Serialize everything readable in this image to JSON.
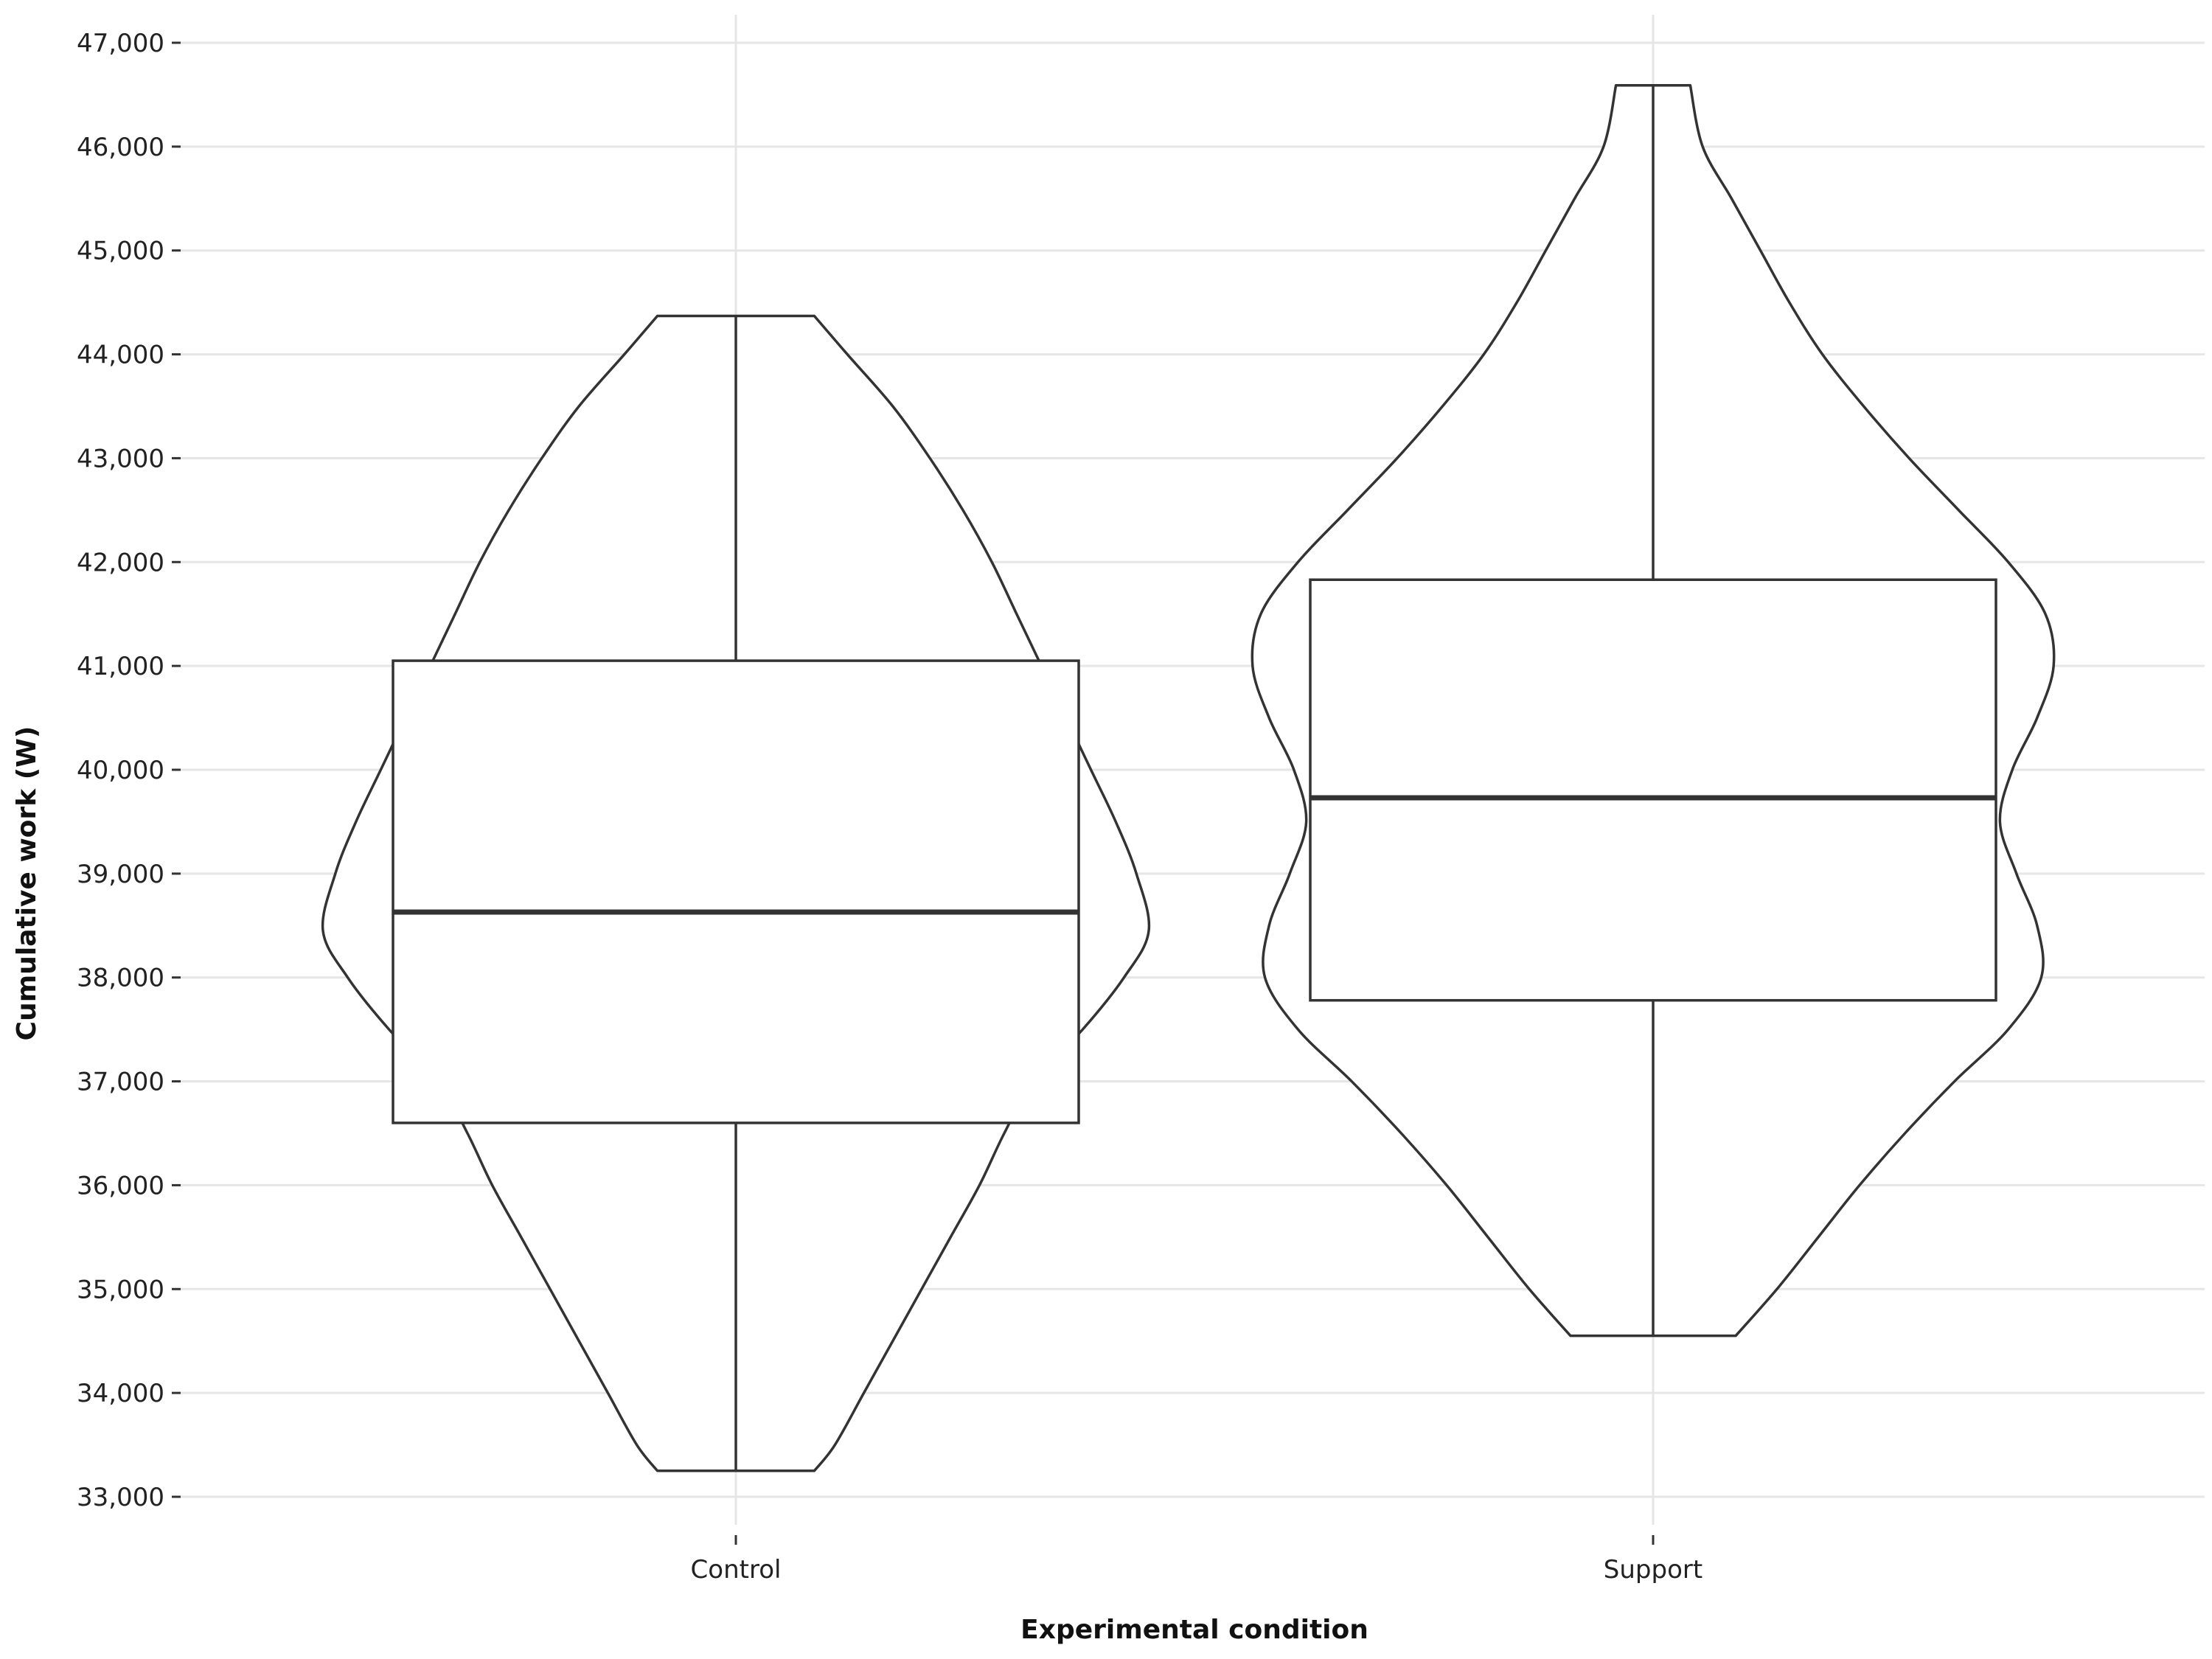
{
  "chart_data": {
    "type": "violin",
    "title": "",
    "xlabel": "Experimental condition",
    "ylabel": "Cumulative work (W)",
    "ylim": [
      33000,
      47000
    ],
    "yticks": [
      33000,
      34000,
      35000,
      36000,
      37000,
      38000,
      39000,
      40000,
      41000,
      42000,
      43000,
      44000,
      45000,
      46000,
      47000
    ],
    "ytick_labels": [
      "33,000",
      "34,000",
      "35,000",
      "36,000",
      "37,000",
      "38,000",
      "39,000",
      "40,000",
      "41,000",
      "42,000",
      "43,000",
      "44,000",
      "45,000",
      "46,000",
      "47,000"
    ],
    "categories": [
      "Control",
      "Support"
    ],
    "grid": true,
    "legend": "none",
    "colors": {
      "line": "#333333",
      "grid": "#e6e6e6",
      "fill": "#ffffff"
    },
    "groups": [
      {
        "name": "Control",
        "min": 33250,
        "q1": 36600,
        "median": 38630,
        "q3": 41050,
        "max": 44370,
        "density": [
          [
            33250,
            0.19
          ],
          [
            33500,
            0.24
          ],
          [
            34000,
            0.31
          ],
          [
            34500,
            0.38
          ],
          [
            35000,
            0.45
          ],
          [
            35500,
            0.52
          ],
          [
            36000,
            0.59
          ],
          [
            36500,
            0.65
          ],
          [
            37000,
            0.72
          ],
          [
            37500,
            0.84
          ],
          [
            38000,
            0.94
          ],
          [
            38450,
            1.0
          ],
          [
            39000,
            0.97
          ],
          [
            39500,
            0.92
          ],
          [
            40000,
            0.86
          ],
          [
            40500,
            0.8
          ],
          [
            41000,
            0.74
          ],
          [
            41500,
            0.68
          ],
          [
            42000,
            0.62
          ],
          [
            42500,
            0.55
          ],
          [
            43000,
            0.47
          ],
          [
            43500,
            0.38
          ],
          [
            44000,
            0.27
          ],
          [
            44370,
            0.19
          ]
        ]
      },
      {
        "name": "Support",
        "min": 34550,
        "q1": 37780,
        "median": 39730,
        "q3": 41830,
        "max": 46590,
        "density": [
          [
            34550,
            0.2
          ],
          [
            35000,
            0.3
          ],
          [
            35500,
            0.4
          ],
          [
            36000,
            0.5
          ],
          [
            36500,
            0.61
          ],
          [
            37000,
            0.73
          ],
          [
            37500,
            0.86
          ],
          [
            38000,
            0.94
          ],
          [
            38500,
            0.93
          ],
          [
            39000,
            0.88
          ],
          [
            39500,
            0.84
          ],
          [
            40000,
            0.87
          ],
          [
            40500,
            0.93
          ],
          [
            41000,
            0.97
          ],
          [
            41500,
            0.95
          ],
          [
            42000,
            0.86
          ],
          [
            42500,
            0.74
          ],
          [
            43000,
            0.62
          ],
          [
            43500,
            0.51
          ],
          [
            44000,
            0.41
          ],
          [
            44500,
            0.33
          ],
          [
            45000,
            0.26
          ],
          [
            45500,
            0.19
          ],
          [
            46000,
            0.12
          ],
          [
            46590,
            0.09
          ]
        ]
      }
    ]
  }
}
